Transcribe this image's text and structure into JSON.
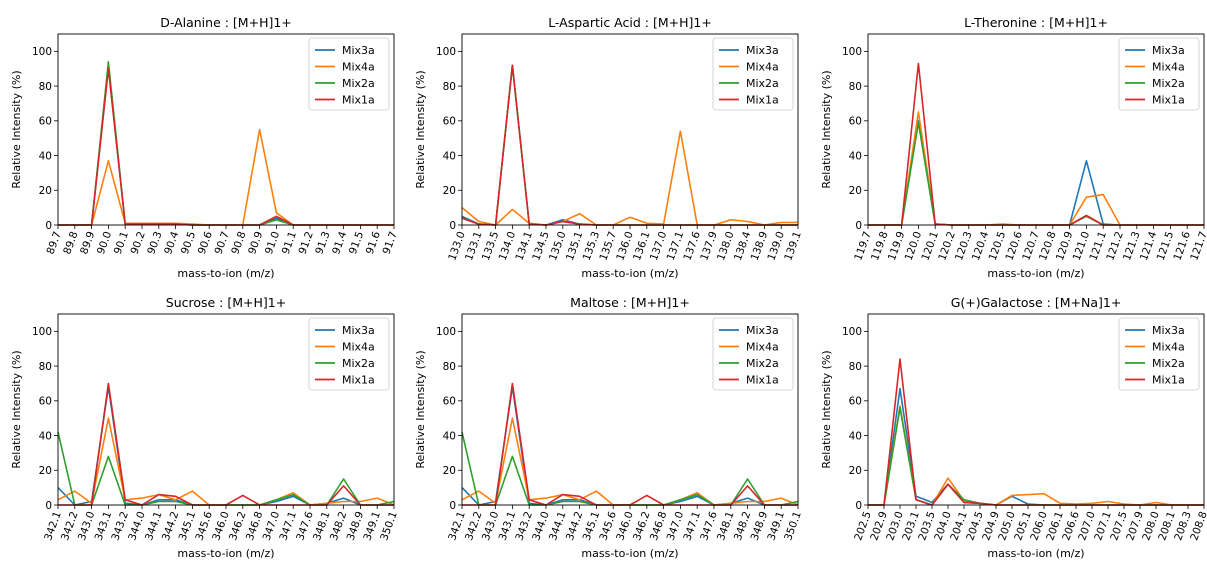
{
  "colors": {
    "Mix3a": "#1f77b4",
    "Mix4a": "#ff7f0e",
    "Mix2a": "#2ca02c",
    "Mix1a": "#d62728"
  },
  "chart_data": [
    {
      "type": "line",
      "title": "D-Alanine : [M+H]1+",
      "xlabel": "mass-to-ion (m/z)",
      "ylabel": "Relative Intensity (%)",
      "ylim": [
        0,
        110
      ],
      "yticks": [
        0,
        20,
        40,
        60,
        80,
        100
      ],
      "legend": "top-right",
      "grid": false,
      "categories": [
        "89.7",
        "89.8",
        "89.9",
        "90.0",
        "90.1",
        "90.2",
        "90.3",
        "90.4",
        "90.5",
        "90.6",
        "90.7",
        "90.8",
        "90.9",
        "91.0",
        "91.1",
        "91.2",
        "91.3",
        "91.4",
        "91.5",
        "91.6",
        "91.7"
      ],
      "series": [
        {
          "name": "Mix3a",
          "values": [
            0,
            0,
            0,
            91,
            0.5,
            0.5,
            0.5,
            0.5,
            0,
            0,
            0,
            0,
            0,
            4,
            0,
            0,
            0,
            0,
            0,
            0,
            0
          ]
        },
        {
          "name": "Mix4a",
          "values": [
            0,
            0,
            0,
            37,
            1,
            1,
            1,
            1,
            0.5,
            0,
            0,
            0,
            55,
            7,
            0,
            0,
            0,
            0,
            0,
            0,
            0
          ]
        },
        {
          "name": "Mix2a",
          "values": [
            0,
            0,
            0,
            94,
            0.5,
            0.5,
            0.5,
            0.5,
            0,
            0,
            0,
            0,
            0,
            3,
            0,
            0,
            0,
            0,
            0,
            0,
            0
          ]
        },
        {
          "name": "Mix1a",
          "values": [
            0,
            0,
            0,
            90,
            0.5,
            0.5,
            0.5,
            0.5,
            0,
            0,
            0,
            0,
            0,
            5,
            0,
            0,
            0,
            0,
            0,
            0,
            0
          ]
        }
      ]
    },
    {
      "type": "line",
      "title": "L-Aspartic Acid : [M+H]1+",
      "xlabel": "mass-to-ion (m/z)",
      "ylabel": "Relative Intensity (%)",
      "ylim": [
        0,
        110
      ],
      "yticks": [
        0,
        20,
        40,
        60,
        80,
        100
      ],
      "legend": "top-right",
      "grid": false,
      "categories": [
        "133.0",
        "133.1",
        "133.5",
        "134.0",
        "134.1",
        "134.5",
        "135.0",
        "135.1",
        "135.3",
        "135.7",
        "136.0",
        "136.1",
        "137.0",
        "137.1",
        "137.6",
        "137.9",
        "138.0",
        "138.4",
        "138.9",
        "139.0",
        "139.1"
      ],
      "series": [
        {
          "name": "Mix3a",
          "values": [
            5,
            0.5,
            0,
            92,
            0.5,
            0,
            3,
            0.5,
            0,
            0,
            0,
            0,
            0,
            0,
            0,
            0,
            0,
            0,
            0,
            0,
            0
          ]
        },
        {
          "name": "Mix4a",
          "values": [
            10,
            2,
            0,
            9,
            1,
            0,
            2,
            6.5,
            0,
            0,
            4.5,
            1,
            0.5,
            54,
            0,
            0,
            3,
            2,
            0,
            1.5,
            1.5
          ]
        },
        {
          "name": "Mix2a",
          "values": [
            4,
            0.5,
            0,
            92,
            0.5,
            0,
            2,
            0.5,
            0,
            0,
            0,
            0,
            0,
            0,
            0,
            0,
            0,
            0,
            0,
            0,
            0
          ]
        },
        {
          "name": "Mix1a",
          "values": [
            4,
            0.5,
            0,
            92,
            0.5,
            0,
            2,
            0.5,
            0,
            0,
            0,
            0,
            0,
            0,
            0,
            0,
            0,
            0,
            0,
            0,
            0
          ]
        }
      ]
    },
    {
      "type": "line",
      "title": "L-Theronine : [M+H]1+",
      "xlabel": "mass-to-ion (m/z)",
      "ylabel": "Relative Intensity (%)",
      "ylim": [
        0,
        110
      ],
      "yticks": [
        0,
        20,
        40,
        60,
        80,
        100
      ],
      "legend": "top-right",
      "grid": false,
      "categories": [
        "119.7",
        "119.8",
        "119.9",
        "120.0",
        "120.1",
        "120.2",
        "120.3",
        "120.4",
        "120.5",
        "120.6",
        "120.7",
        "120.8",
        "120.9",
        "121.0",
        "121.1",
        "121.2",
        "121.3",
        "121.4",
        "121.5",
        "121.6",
        "121.7"
      ],
      "series": [
        {
          "name": "Mix3a",
          "values": [
            0,
            0,
            0,
            60,
            0.5,
            0,
            0,
            0,
            0,
            0,
            0,
            0,
            0,
            37,
            0.5,
            0,
            0,
            0,
            0,
            0,
            0
          ]
        },
        {
          "name": "Mix4a",
          "values": [
            0,
            0,
            0,
            65,
            0.5,
            0,
            0,
            0,
            0.5,
            0,
            0,
            0,
            0,
            16,
            17.5,
            0,
            0,
            0,
            0,
            0,
            0
          ]
        },
        {
          "name": "Mix2a",
          "values": [
            0,
            0,
            0,
            59,
            0.5,
            0,
            0,
            0,
            0,
            0,
            0,
            0,
            0,
            5,
            0,
            0,
            0,
            0,
            0,
            0,
            0
          ]
        },
        {
          "name": "Mix1a",
          "values": [
            0,
            0,
            0,
            93,
            0.5,
            0,
            0,
            0,
            0,
            0,
            0,
            0,
            0,
            5.5,
            0,
            0,
            0,
            0,
            0,
            0,
            0
          ]
        }
      ]
    },
    {
      "type": "line",
      "title": "Sucrose : [M+H]1+",
      "xlabel": "mass-to-ion (m/z)",
      "ylabel": "Relative Intensity (%)",
      "ylim": [
        0,
        110
      ],
      "yticks": [
        0,
        20,
        40,
        60,
        80,
        100
      ],
      "legend": "top-right",
      "grid": false,
      "categories": [
        "342.1",
        "342.2",
        "343.0",
        "343.1",
        "343.2",
        "344.0",
        "344.1",
        "344.2",
        "345.1",
        "345.6",
        "346.0",
        "346.2",
        "346.8",
        "347.0",
        "347.1",
        "347.6",
        "348.1",
        "348.2",
        "348.9",
        "349.1",
        "350.1"
      ],
      "series": [
        {
          "name": "Mix3a",
          "values": [
            10,
            0,
            2,
            68,
            1,
            0,
            3,
            3,
            0,
            0,
            0,
            0,
            0,
            2,
            5,
            0,
            1,
            4,
            0,
            0,
            0
          ]
        },
        {
          "name": "Mix4a",
          "values": [
            3,
            8,
            1,
            50,
            3,
            4,
            6,
            3,
            8,
            0,
            0,
            0,
            0,
            3,
            7,
            0,
            1,
            2,
            2,
            4,
            0
          ]
        },
        {
          "name": "Mix2a",
          "values": [
            42,
            0,
            0,
            28,
            0,
            0,
            2,
            2,
            0,
            0,
            0,
            0,
            0,
            3,
            6,
            0,
            0,
            15,
            0,
            0,
            2
          ]
        },
        {
          "name": "Mix1a",
          "values": [
            0,
            0,
            0,
            70,
            3,
            0,
            6,
            5,
            0,
            0,
            0,
            5.5,
            0,
            0,
            0,
            0,
            0,
            11,
            0,
            0,
            0
          ]
        }
      ]
    },
    {
      "type": "line",
      "title": "Maltose : [M+H]1+",
      "xlabel": "mass-to-ion (m/z)",
      "ylabel": "Relative Intensity (%)",
      "ylim": [
        0,
        110
      ],
      "yticks": [
        0,
        20,
        40,
        60,
        80,
        100
      ],
      "legend": "top-right",
      "grid": false,
      "categories": [
        "342.1",
        "342.2",
        "343.0",
        "343.1",
        "343.2",
        "344.0",
        "344.1",
        "344.2",
        "345.1",
        "345.6",
        "346.0",
        "346.2",
        "346.8",
        "347.0",
        "347.1",
        "347.6",
        "348.1",
        "348.2",
        "348.9",
        "349.1",
        "350.1"
      ],
      "series": [
        {
          "name": "Mix3a",
          "values": [
            10,
            0,
            2,
            68,
            1,
            0,
            3,
            3,
            0,
            0,
            0,
            0,
            0,
            2,
            5,
            0,
            1,
            4,
            0,
            0,
            0
          ]
        },
        {
          "name": "Mix4a",
          "values": [
            3,
            8,
            1,
            50,
            3,
            4,
            6,
            3,
            8,
            0,
            0,
            0,
            0,
            3,
            7,
            0,
            1,
            2,
            2,
            4,
            0
          ]
        },
        {
          "name": "Mix2a",
          "values": [
            42,
            0,
            0,
            28,
            0,
            0,
            2,
            2,
            0,
            0,
            0,
            0,
            0,
            3,
            6,
            0,
            0,
            15,
            0,
            0,
            2
          ]
        },
        {
          "name": "Mix1a",
          "values": [
            0,
            0,
            0,
            70,
            3,
            0,
            6,
            5,
            0,
            0,
            0,
            5.5,
            0,
            0,
            0,
            0,
            0,
            11,
            0,
            0,
            0
          ]
        }
      ]
    },
    {
      "type": "line",
      "title": "G(+)Galactose : [M+Na]1+",
      "xlabel": "mass-to-ion (m/z)",
      "ylabel": "Relative Intensity (%)",
      "ylim": [
        0,
        110
      ],
      "yticks": [
        0,
        20,
        40,
        60,
        80,
        100
      ],
      "legend": "top-right",
      "grid": false,
      "categories": [
        "202.5",
        "202.9",
        "203.0",
        "203.1",
        "203.5",
        "204.0",
        "204.1",
        "204.5",
        "204.9",
        "205.0",
        "205.1",
        "206.0",
        "206.1",
        "206.6",
        "207.0",
        "207.1",
        "207.5",
        "207.9",
        "208.0",
        "208.1",
        "208.3",
        "208.8"
      ],
      "series": [
        {
          "name": "Mix3a",
          "values": [
            0,
            0,
            67,
            5,
            1.5,
            12,
            1.5,
            1,
            0,
            5,
            0.5,
            0,
            0,
            0,
            0,
            0,
            0,
            0,
            0,
            0,
            0,
            0
          ]
        },
        {
          "name": "Mix4a",
          "values": [
            0,
            0,
            57,
            3,
            0,
            15.5,
            2.5,
            1,
            0,
            5.5,
            6,
            6.5,
            1,
            0.5,
            1,
            2,
            0.5,
            0,
            1.5,
            0,
            0,
            0
          ]
        },
        {
          "name": "Mix2a",
          "values": [
            0,
            0,
            56,
            3,
            0,
            12,
            3,
            1,
            0,
            0,
            0,
            0,
            0,
            0,
            0,
            0,
            0,
            0,
            0,
            0,
            0,
            0
          ]
        },
        {
          "name": "Mix1a",
          "values": [
            0,
            0,
            84,
            3,
            0,
            12,
            1.5,
            1,
            0,
            0,
            0,
            0,
            0,
            0,
            0,
            0,
            0,
            0,
            0,
            0,
            0,
            0
          ]
        }
      ]
    }
  ]
}
